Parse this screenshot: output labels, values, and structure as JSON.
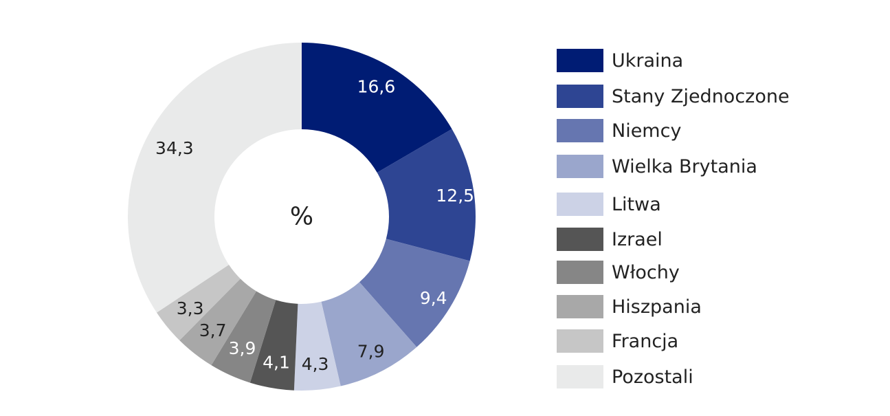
{
  "chart_data": {
    "type": "pie",
    "donut": true,
    "center_label": "%",
    "categories": [
      "Ukraina",
      "Stany Zjednoczone",
      "Niemcy",
      "Wielka Brytania",
      "Litwa",
      "Izrael",
      "Włochy",
      "Hiszpania",
      "Francja",
      "Pozostali"
    ],
    "values": [
      16.6,
      12.5,
      9.4,
      7.9,
      4.3,
      4.1,
      3.9,
      3.7,
      3.3,
      34.3
    ],
    "value_labels": [
      "16,6",
      "12,5",
      "9,4",
      "7,9",
      "4,3",
      "4,1",
      "3,9",
      "3,7",
      "3,3",
      "34,3"
    ],
    "colors": [
      "#001c74",
      "#2e4593",
      "#6676b0",
      "#9aa6cc",
      "#ccd2e6",
      "#555555",
      "#868686",
      "#a8a8a8",
      "#c6c6c6",
      "#e9eaea"
    ],
    "label_colors": [
      "#ffffff",
      "#ffffff",
      "#ffffff",
      "#222222",
      "#222222",
      "#ffffff",
      "#ffffff",
      "#222222",
      "#222222",
      "#222222"
    ],
    "legend_position": "right",
    "start": "12 o'clock, clockwise"
  }
}
